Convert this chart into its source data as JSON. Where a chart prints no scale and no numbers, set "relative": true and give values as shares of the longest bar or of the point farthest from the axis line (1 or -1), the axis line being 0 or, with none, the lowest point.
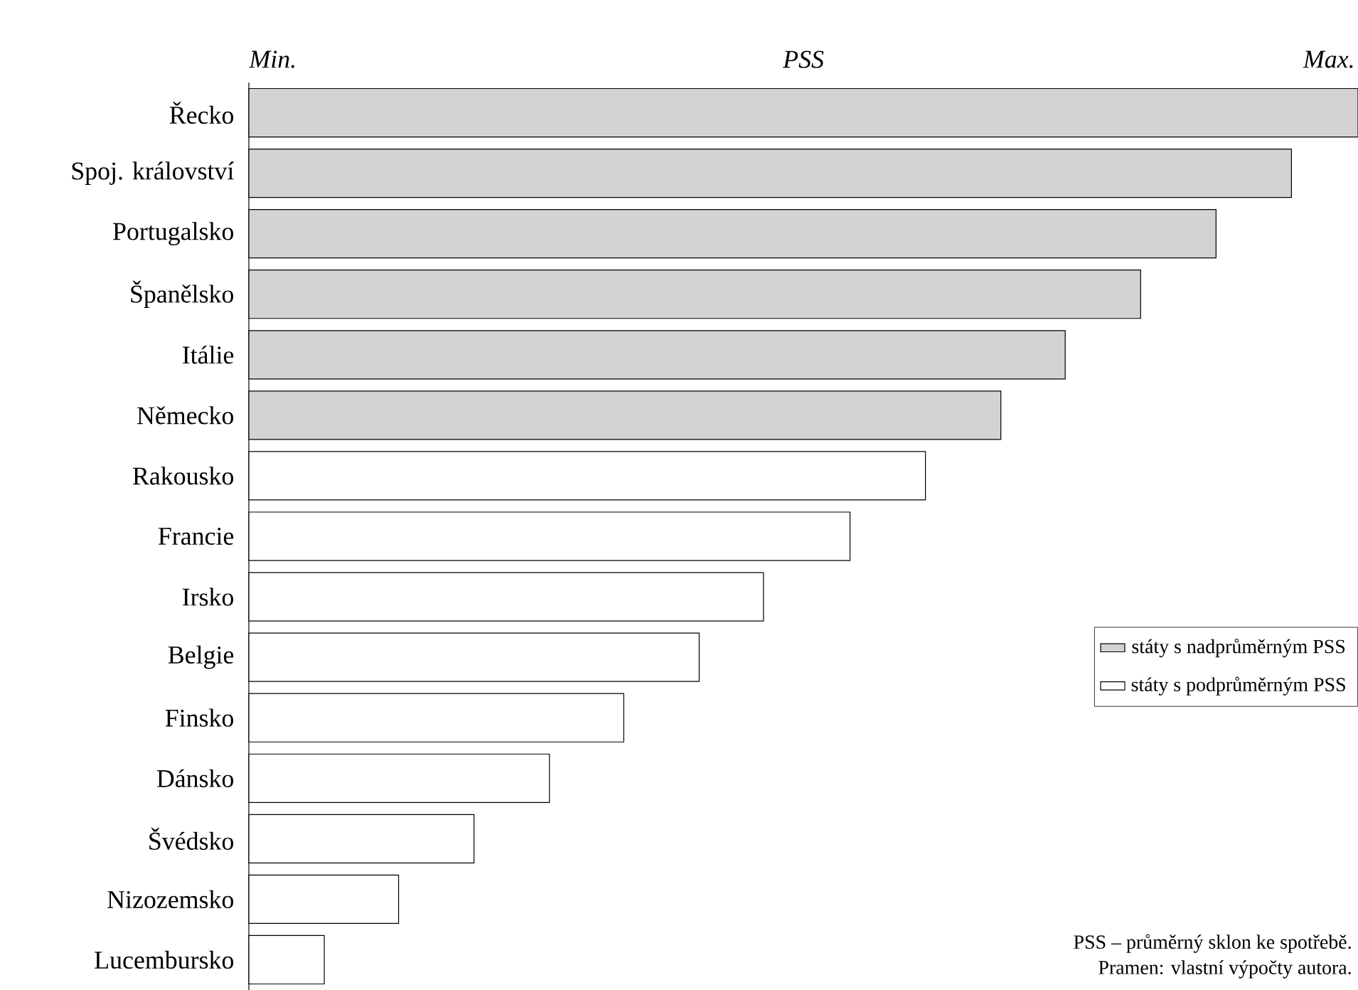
{
  "chart_data": {
    "type": "bar",
    "orientation": "horizontal",
    "relative": true,
    "xlabel": "PSS",
    "categories": [
      "Řecko",
      "Spoj. království",
      "Portugalsko",
      "Španělsko",
      "Itálie",
      "Německo",
      "Rakousko",
      "Francie",
      "Irsko",
      "Belgie",
      "Finsko",
      "Dánsko",
      "Švédsko",
      "Nizozemsko",
      "Lucembursko"
    ],
    "series": [
      {
        "name": "státy s nadprůměrným PSS",
        "color": "#d3d3d3",
        "values": [
          1,
          0.94,
          0.872,
          0.804,
          0.736,
          0.678,
          null,
          null,
          null,
          null,
          null,
          null,
          null,
          null,
          null
        ]
      },
      {
        "name": "státy s podprůměrným PSS",
        "color": "#ffffff",
        "values": [
          null,
          null,
          null,
          null,
          null,
          null,
          0.61,
          0.542,
          0.464,
          0.406,
          0.338,
          0.271,
          0.203,
          0.135,
          0.068
        ]
      }
    ],
    "legend": "right",
    "annotations": [
      "Min.",
      "Max.",
      "PSS – průměrný sklon ke spotřebě.",
      "Pramen: vlastní výpočty autora."
    ]
  }
}
